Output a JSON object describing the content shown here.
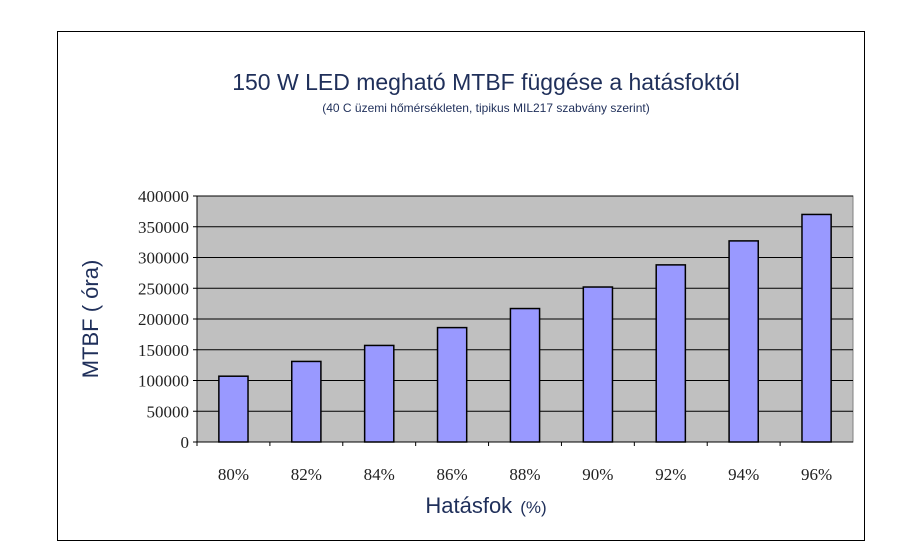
{
  "chart_data": {
    "type": "bar",
    "title": "150 W LED megható MTBF függése a hatásfoktól",
    "subtitle": "(40 C üzemi hőmérsékleten, tipikus MIL217 szabvány szerint)",
    "xlabel": "Hatásfok",
    "xlabel_unit": "(%)",
    "ylabel": "MTBF ( óra)",
    "categories": [
      "80%",
      "82%",
      "84%",
      "86%",
      "88%",
      "90%",
      "92%",
      "94%",
      "96%"
    ],
    "values": [
      107000,
      131000,
      157000,
      186000,
      217000,
      252000,
      288000,
      327000,
      370000
    ],
    "ylim": [
      0,
      400000
    ],
    "yticks": [
      "0",
      "50000",
      "100000",
      "150000",
      "200000",
      "250000",
      "300000",
      "350000",
      "400000"
    ],
    "grid": true,
    "colors": {
      "plot_background": "#c0c0c0",
      "bar_fill": "#9999ff",
      "bar_stroke": "#000000",
      "gridline": "#000000"
    }
  }
}
